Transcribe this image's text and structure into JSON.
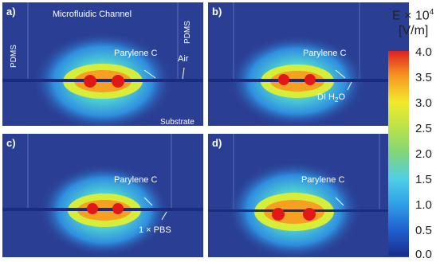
{
  "panels": [
    {
      "label": "a)",
      "annotations": {
        "channel": "Microfluidic Channel",
        "pdms_left": "PDMS",
        "pdms_right": "PDMS",
        "parylene": "Parylene C",
        "medium": "Air",
        "substrate": "Substrate"
      }
    },
    {
      "label": "b)",
      "annotations": {
        "parylene": "Parylene C",
        "medium_prefix": "DI H",
        "medium_sub": "2",
        "medium_suffix": "O"
      }
    },
    {
      "label": "c)",
      "annotations": {
        "parylene": "Parylene C",
        "medium": "1 × PBS"
      }
    },
    {
      "label": "d)",
      "annotations": {
        "parylene": "Parylene C"
      }
    }
  ],
  "colorbar": {
    "title_base": "E × 10",
    "title_exp": "4",
    "unit": "[V/m]",
    "ticks": [
      "4.0",
      "3.5",
      "3.0",
      "2.5",
      "2.0",
      "1.5",
      "1.0",
      "0.5",
      "0.0"
    ],
    "colors": {
      "low": "#1c2e8c",
      "mid": "#7fd67a",
      "high": "#e02020"
    }
  }
}
